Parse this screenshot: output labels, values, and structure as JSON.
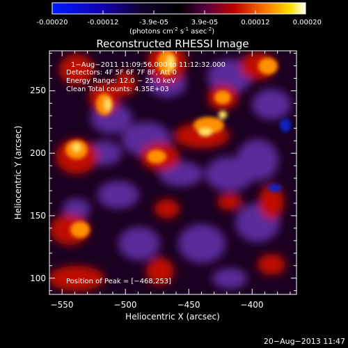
{
  "colorbar": {
    "ticks": [
      "-0.00020",
      "-0.00012",
      "-3.9e-05",
      "3.9e-05",
      "0.00012",
      "0.00020"
    ],
    "unit_line1": "(photons cm",
    "unit_exp1": "-2",
    "unit_line2": " s",
    "unit_exp2": "-1",
    "unit_line3": " asec",
    "unit_exp3": "-2",
    "unit_close": ")"
  },
  "chart_data": {
    "type": "heatmap",
    "title": "Reconstructed RHESSI Image",
    "xlabel": "Heliocentric X (arcsec)",
    "ylabel": "Heliocentric Y (arcsec)",
    "xlim": [
      -560,
      -365
    ],
    "ylim": [
      87,
      282
    ],
    "xticks": [
      -550,
      -500,
      -450,
      -400
    ],
    "yticks": [
      100,
      150,
      200,
      250
    ],
    "xtick_labels": [
      "−550",
      "−500",
      "−450",
      "−400"
    ],
    "ytick_labels": [
      "100",
      "150",
      "200",
      "250"
    ],
    "colorscale": "rhessi-blue-black-purple-red-yellow-white",
    "zlim": [
      -0.0002,
      0.0002
    ],
    "peak": {
      "x": -468,
      "y": 253
    },
    "annotations": [
      "1−Aug−2011 11:09:56.000 to 11:12:32.000",
      "Detectors: 4F 5F 6F 7F 8F, Att 0",
      "Energy Range: 12.0 − 25.0 keV",
      "Clean     Total counts: 4.35E+03",
      "Position of Peak = [−468,253]"
    ]
  },
  "footer": {
    "timestamp": "20−Aug−2013 11:47"
  }
}
